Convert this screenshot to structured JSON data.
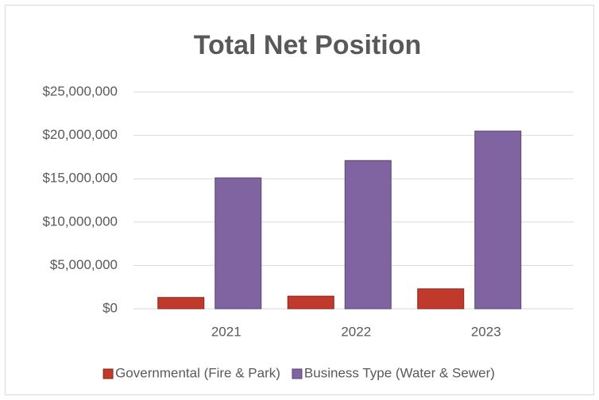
{
  "chart_data": {
    "type": "bar",
    "title": "Total Net Position",
    "categories": [
      "2021",
      "2022",
      "2023"
    ],
    "series": [
      {
        "name": "Governmental (Fire & Park)",
        "color": "#c0392b",
        "values": [
          1300000,
          1450000,
          2300000
        ]
      },
      {
        "name": "Business Type (Water & Sewer)",
        "color": "#8064a2",
        "values": [
          15100000,
          17100000,
          20500000
        ]
      }
    ],
    "ylim": [
      0,
      25000000
    ],
    "yticks": [
      {
        "value": 0,
        "label": "$0"
      },
      {
        "value": 5000000,
        "label": "$5,000,000"
      },
      {
        "value": 10000000,
        "label": "$10,000,000"
      },
      {
        "value": 15000000,
        "label": "$15,000,000"
      },
      {
        "value": 20000000,
        "label": "$20,000,000"
      },
      {
        "value": 25000000,
        "label": "$25,000,000"
      }
    ],
    "grid": true,
    "legend": "bottom"
  }
}
